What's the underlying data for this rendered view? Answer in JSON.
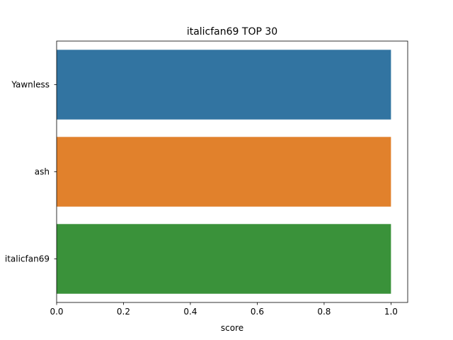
{
  "chart_data": {
    "type": "bar",
    "orientation": "horizontal",
    "title": "italicfan69 TOP 30",
    "xlabel": "score",
    "ylabel": "",
    "categories": [
      "Yawnless",
      "ash",
      "italicfan69"
    ],
    "values": [
      1.0,
      1.0,
      1.0
    ],
    "colors": [
      "#3274a1",
      "#e1812c",
      "#3a923a"
    ],
    "xlim": [
      0,
      1.05
    ],
    "xticks": [
      0.0,
      0.2,
      0.4,
      0.6,
      0.8,
      1.0
    ],
    "xtick_labels": [
      "0.0",
      "0.2",
      "0.4",
      "0.6",
      "0.8",
      "1.0"
    ],
    "grid": false,
    "legend": "none"
  }
}
